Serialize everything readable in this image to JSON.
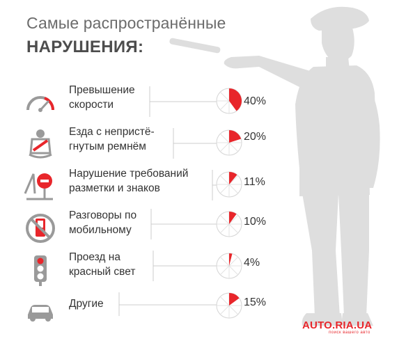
{
  "header": {
    "line1": "Самые распространённые",
    "line2": "НАРУШЕНИЯ:"
  },
  "colors": {
    "accent": "#e8262b",
    "silhouette": "#dedede",
    "text": "#333333",
    "icon": "#9a9a9a"
  },
  "chart_data": {
    "type": "pie",
    "title": "Самые распространённые НАРУШЕНИЯ:",
    "unit": "%",
    "categories": [
      "Превышение скорости",
      "Езда с непристё-гнутым ремнём",
      "Нарушение требований разметки и знаков",
      "Разговоры по мобильному",
      "Проезд на красный свет",
      "Другие"
    ],
    "values": [
      40,
      20,
      11,
      10,
      4,
      15
    ]
  },
  "rows": [
    {
      "icon": "speedometer-icon",
      "label_lines": [
        "Превышение",
        "скорости"
      ],
      "value": 40,
      "value_label": "40%"
    },
    {
      "icon": "seatbelt-icon",
      "label_lines": [
        "Езда с непристё-",
        "гнутым ремнём"
      ],
      "value": 20,
      "value_label": "20%"
    },
    {
      "icon": "road-sign-icon",
      "label_lines": [
        "Нарушение требований",
        "разметки и знаков"
      ],
      "value": 11,
      "value_label": "11%"
    },
    {
      "icon": "no-phone-icon",
      "label_lines": [
        "Разговоры по",
        "мобильному"
      ],
      "value": 10,
      "value_label": "10%"
    },
    {
      "icon": "traffic-light-icon",
      "label_lines": [
        "Проезд на",
        "красный свет"
      ],
      "value": 4,
      "value_label": "4%"
    },
    {
      "icon": "car-icon",
      "label_lines": [
        "Другие"
      ],
      "value": 15,
      "value_label": "15%"
    }
  ],
  "logo": {
    "text": "AUTO.RIA.UA",
    "tagline": "поиск вашего авто"
  }
}
